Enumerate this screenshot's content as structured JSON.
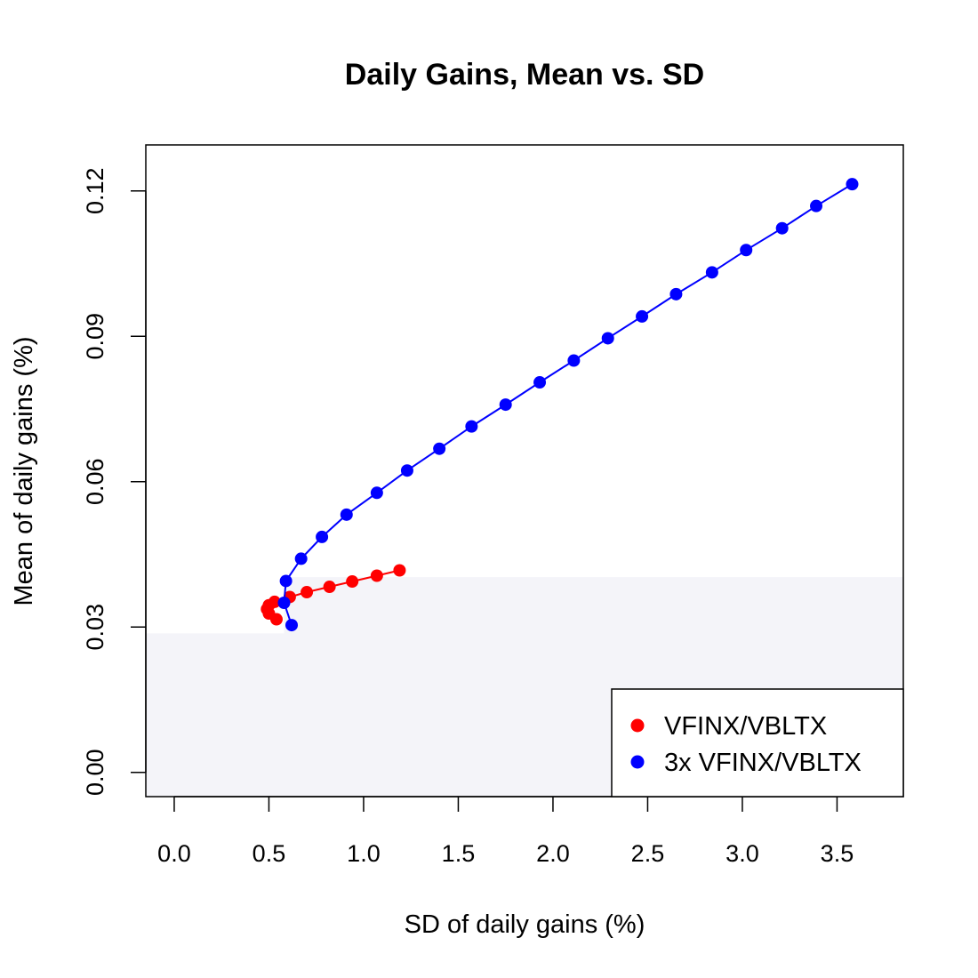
{
  "chart_data": {
    "type": "line",
    "title": "Daily Gains, Mean vs. SD",
    "xlabel": "SD of daily gains (%)",
    "ylabel": "Mean of daily gains (%)",
    "xlim": [
      -0.15,
      3.85
    ],
    "ylim": [
      -0.005,
      0.1295
    ],
    "x_ticks": [
      0.0,
      0.5,
      1.0,
      1.5,
      2.0,
      2.5,
      3.0,
      3.5
    ],
    "x_tick_labels": [
      "0.0",
      "0.5",
      "1.0",
      "1.5",
      "2.0",
      "2.5",
      "3.0",
      "3.5"
    ],
    "y_ticks": [
      0.0,
      0.03,
      0.06,
      0.09,
      0.12
    ],
    "y_tick_labels": [
      "0.00",
      "0.03",
      "0.06",
      "0.09",
      "0.12"
    ],
    "grid": false,
    "legend_position": "bottom-right",
    "background_bands": [
      {
        "x_from": -0.15,
        "x_to": 0.58,
        "y_from": -0.005,
        "y_to": 0.0287,
        "color": "#f4f4f9"
      },
      {
        "x_from": 0.58,
        "x_to": 3.85,
        "y_from": -0.005,
        "y_to": 0.0403,
        "color": "#f4f4f9"
      }
    ],
    "series": [
      {
        "name": "VFINX/VBLTX",
        "color": "#ff0000",
        "x": [
          0.54,
          0.5,
          0.49,
          0.5,
          0.53,
          0.61,
          0.7,
          0.82,
          0.94,
          1.07,
          1.19
        ],
        "y": [
          0.0316,
          0.0328,
          0.0337,
          0.0345,
          0.0352,
          0.0362,
          0.0372,
          0.0383,
          0.0394,
          0.0406,
          0.0417
        ]
      },
      {
        "name": "3x VFINX/VBLTX",
        "color": "#0000ff",
        "x": [
          0.62,
          0.58,
          0.59,
          0.67,
          0.78,
          0.91,
          1.07,
          1.23,
          1.4,
          1.57,
          1.75,
          1.93,
          2.11,
          2.29,
          2.47,
          2.65,
          2.84,
          3.02,
          3.21,
          3.39,
          3.58
        ],
        "y": [
          0.0304,
          0.035,
          0.0395,
          0.0441,
          0.0486,
          0.0532,
          0.0577,
          0.0623,
          0.0668,
          0.0714,
          0.0759,
          0.0805,
          0.085,
          0.0896,
          0.0941,
          0.0987,
          0.1032,
          0.1078,
          0.1123,
          0.1169,
          0.1214
        ]
      }
    ]
  }
}
